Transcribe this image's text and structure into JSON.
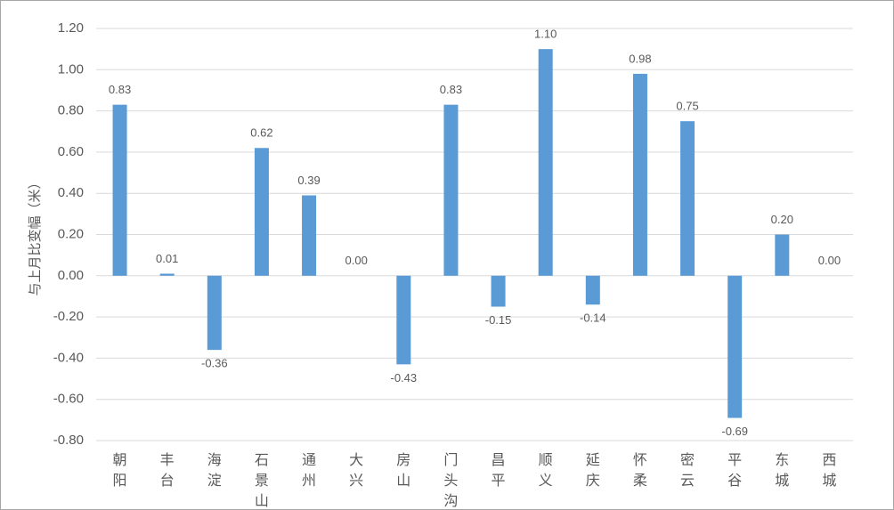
{
  "chart_data": {
    "type": "bar",
    "y_label": "与上月比变幅（米）",
    "categories": [
      "朝阳",
      "丰台",
      "海淀",
      "石景山",
      "通州",
      "大兴",
      "房山",
      "门头沟",
      "昌平",
      "顺义",
      "延庆",
      "怀柔",
      "密云",
      "平谷",
      "东城",
      "西城"
    ],
    "values": [
      0.83,
      0.01,
      -0.36,
      0.62,
      0.39,
      0,
      -0.43,
      0.83,
      -0.15,
      1.1,
      -0.14,
      0.98,
      0.75,
      -0.69,
      0.2,
      0
    ],
    "value_labels": [
      "0.83",
      "0.01",
      "-0.36",
      "0.62",
      "0.39",
      "0.00",
      "-0.43",
      "0.83",
      "-0.15",
      "1.10",
      "-0.14",
      "0.98",
      "0.75",
      "-0.69",
      "0.20",
      "0.00"
    ],
    "color": "#5b9bd5",
    "ylim": [
      -0.8,
      1.2
    ],
    "yticks": [
      {
        "value": -0.8,
        "label": "-0.80"
      },
      {
        "value": -0.6,
        "label": "-0.60"
      },
      {
        "value": -0.4,
        "label": "-0.40"
      },
      {
        "value": -0.2,
        "label": "-0.20"
      },
      {
        "value": 0,
        "label": "0.00"
      },
      {
        "value": 0.2,
        "label": "0.20"
      },
      {
        "value": 0.4,
        "label": "0.40"
      },
      {
        "value": 0.6,
        "label": "0.60"
      },
      {
        "value": 0.8,
        "label": "0.80"
      },
      {
        "value": 1,
        "label": "1.00"
      },
      {
        "value": 1.2,
        "label": "1.20"
      }
    ],
    "grid": true
  }
}
